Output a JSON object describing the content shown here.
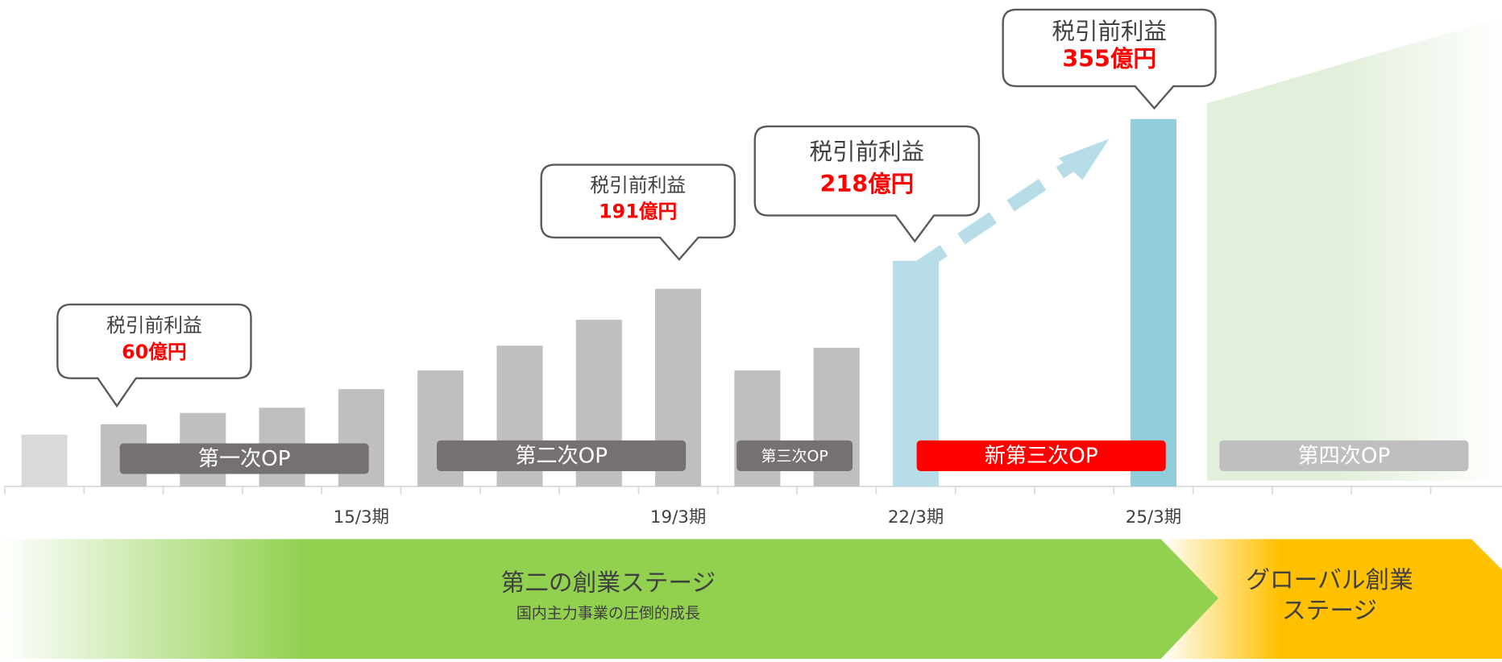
{
  "chart_data": {
    "type": "bar",
    "categories": [
      null,
      null,
      null,
      null,
      "15/3期",
      null,
      null,
      null,
      "19/3期",
      null,
      null,
      "22/3期",
      null,
      null,
      "25/3期",
      null,
      null,
      null,
      null
    ],
    "values": [
      50,
      60,
      71,
      76,
      94,
      112,
      136,
      161,
      191,
      112,
      134,
      218,
      null,
      null,
      355,
      null,
      null,
      null,
      null
    ],
    "value_labels": [
      null,
      "60億円",
      null,
      null,
      null,
      null,
      null,
      null,
      "191億円",
      null,
      null,
      "218億円",
      null,
      null,
      "355億円",
      null,
      null,
      null,
      null
    ],
    "colors": [
      "#d9d9d9",
      "#bfbfbf",
      "#bfbfbf",
      "#bfbfbf",
      "#bfbfbf",
      "#bfbfbf",
      "#bfbfbf",
      "#bfbfbf",
      "#bfbfbf",
      "#bfbfbf",
      "#bfbfbf",
      "#b7dde8",
      null,
      null,
      "#92cddc",
      null,
      null,
      null,
      null
    ],
    "callout_label": "税引前利益",
    "ylim": [
      0,
      470
    ],
    "phases": [
      {
        "label": "第一次OP",
        "color": "#767171"
      },
      {
        "label": "第二次OP",
        "color": "#767171"
      },
      {
        "label": "第三次OP",
        "color": "#767171"
      },
      {
        "label": "新第三次OP",
        "color": "#ff0000"
      },
      {
        "label": "第四次OP",
        "color": "#bfbfbf"
      }
    ],
    "stages": [
      {
        "title": "第二の創業ステージ",
        "subtitle": "国内主力事業の圧倒的成長"
      },
      {
        "title": [
          "グローバル創業",
          "ステージ"
        ]
      }
    ]
  }
}
